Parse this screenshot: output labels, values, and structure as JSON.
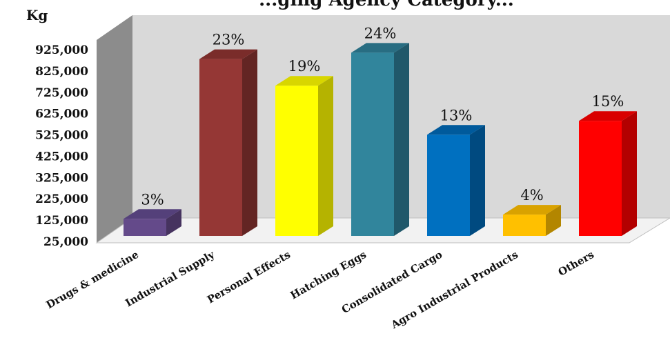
{
  "chart_data": {
    "type": "bar",
    "title": "...ging Agency Category...",
    "ylabel": "Kg",
    "xlabel": "",
    "yticks": [
      "925,000",
      "825,000",
      "725,000",
      "625,000",
      "525,000",
      "425,000",
      "325,000",
      "225,000",
      "125,000",
      "25,000"
    ],
    "ylim": [
      25000,
      925000
    ],
    "categories": [
      "Drugs & medicine",
      "Industrial Supply",
      "Personal Effects",
      "Hatching Eggs",
      "Consolidated Cargo",
      "Agro Industrial Products",
      "Others"
    ],
    "values": [
      105000,
      855000,
      730000,
      885000,
      500000,
      125000,
      565000
    ],
    "labels": [
      "3%",
      "23%",
      "19%",
      "24%",
      "13%",
      "4%",
      "15%"
    ],
    "colors": [
      {
        "front": "#644a8a",
        "side": "#46335f",
        "top": "#54407a"
      },
      {
        "front": "#953735",
        "side": "#632523",
        "top": "#7a2c2a"
      },
      {
        "front": "#ffff00",
        "side": "#b5b300",
        "top": "#d8d600"
      },
      {
        "front": "#31859c",
        "side": "#20586a",
        "top": "#286d82"
      },
      {
        "front": "#0070c0",
        "side": "#004a80",
        "top": "#005a9c"
      },
      {
        "front": "#ffc000",
        "side": "#b38600",
        "top": "#d9a200"
      },
      {
        "front": "#ff0000",
        "side": "#b30000",
        "top": "#d90000"
      }
    ],
    "grid": false,
    "legend": "none"
  }
}
